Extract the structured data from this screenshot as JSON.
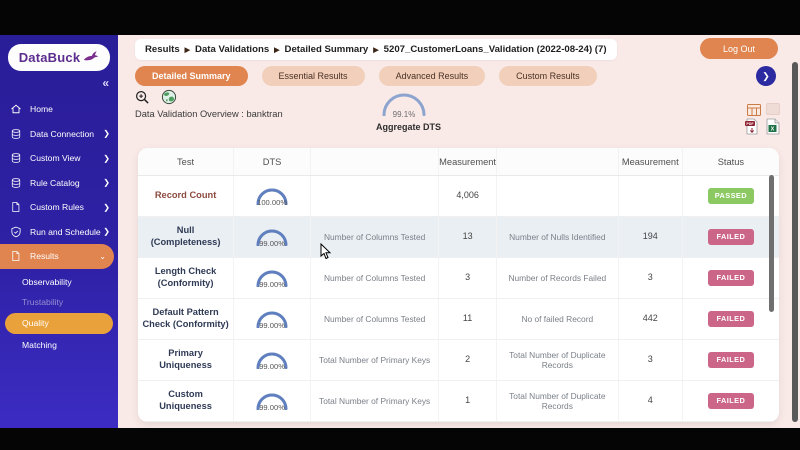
{
  "header": {
    "logout_label": "Log Out"
  },
  "breadcrumb": [
    "Results",
    "Data Validations",
    "Detailed Summary",
    "5207_CustomerLoans_Validation (2022-08-24) (7)"
  ],
  "sidebar": {
    "brand": "DataBuck",
    "collapse_glyph": "«",
    "items": [
      {
        "label": "Home",
        "icon": "home",
        "expandable": false,
        "active": false
      },
      {
        "label": "Data Connection",
        "icon": "database",
        "expandable": true,
        "active": false
      },
      {
        "label": "Custom View",
        "icon": "database",
        "expandable": true,
        "active": false
      },
      {
        "label": "Rule Catalog",
        "icon": "database",
        "expandable": true,
        "active": false
      },
      {
        "label": "Custom Rules",
        "icon": "file",
        "expandable": true,
        "active": false
      },
      {
        "label": "Run and Schedule",
        "icon": "shield",
        "expandable": true,
        "active": false
      },
      {
        "label": "Results",
        "icon": "file",
        "expandable": true,
        "expanded": true,
        "active": true
      }
    ],
    "results_children": [
      {
        "label": "Observability",
        "state": "normal"
      },
      {
        "label": "Trustability",
        "state": "dimmed"
      },
      {
        "label": "Quality",
        "state": "active"
      },
      {
        "label": "Matching",
        "state": "normal"
      }
    ]
  },
  "tabs": [
    {
      "label": "Detailed Summary",
      "active": true
    },
    {
      "label": "Essential Results",
      "active": false
    },
    {
      "label": "Advanced Results",
      "active": false
    },
    {
      "label": "Custom Results",
      "active": false
    }
  ],
  "toolbar": {
    "icons": [
      "zoom-in-magnifier",
      "globe"
    ]
  },
  "overview": {
    "title": "Data Validation Overview : banktran"
  },
  "aggregate": {
    "value_label": "99.1%",
    "pct": 99.1,
    "caption": "Aggregate DTS"
  },
  "exports": {
    "icons": [
      "table-view",
      "chart-view",
      "pdf-export",
      "excel-export"
    ]
  },
  "table": {
    "headers": [
      "Test",
      "DTS",
      "",
      "Measurement",
      "",
      "Measurement",
      "Status"
    ],
    "rows": [
      {
        "test": "Record Count",
        "test_color": "maroon",
        "dts_label": "100.00%",
        "dts_pct": 100,
        "m1_label": "",
        "m1_value": "4,006",
        "m2_label": "",
        "m2_value": "",
        "status": "PASSED",
        "shaded": false
      },
      {
        "test": "Null (Completeness)",
        "test_color": "normal",
        "dts_label": "99.00%",
        "dts_pct": 99,
        "m1_label": "Number of Columns Tested",
        "m1_value": "13",
        "m2_label": "Number of Nulls Identified",
        "m2_value": "194",
        "status": "FAILED",
        "shaded": true
      },
      {
        "test": "Length Check (Conformity)",
        "test_color": "normal",
        "dts_label": "99.00%",
        "dts_pct": 99,
        "m1_label": "Number of Columns Tested",
        "m1_value": "3",
        "m2_label": "Number of Records Failed",
        "m2_value": "3",
        "status": "FAILED",
        "shaded": false
      },
      {
        "test": "Default Pattern Check (Conformity)",
        "test_color": "normal",
        "dts_label": "99.00%",
        "dts_pct": 99,
        "m1_label": "Number of Columns Tested",
        "m1_value": "11",
        "m2_label": "No of failed Record",
        "m2_value": "442",
        "status": "FAILED",
        "shaded": false
      },
      {
        "test": "Primary Uniqueness",
        "test_color": "normal",
        "dts_label": "99.00%",
        "dts_pct": 99,
        "m1_label": "Total Number of Primary Keys",
        "m1_value": "2",
        "m2_label": "Total Number of Duplicate Records",
        "m2_value": "3",
        "status": "FAILED",
        "shaded": false
      },
      {
        "test": "Custom Uniqueness",
        "test_color": "normal",
        "dts_label": "99.00%",
        "dts_pct": 99,
        "m1_label": "Total Number of Primary Keys",
        "m1_value": "1",
        "m2_label": "Total Number of Duplicate Records",
        "m2_value": "4",
        "status": "FAILED",
        "shaded": false
      }
    ]
  },
  "colors": {
    "accent_orange": "#e08450",
    "quality_orange": "#e9a23b",
    "passed_green": "#8cc963",
    "failed_pink": "#cb6688",
    "gauge_blue": "#5f7fbe",
    "sidebar_top": "#2a1d98",
    "sidebar_bottom": "#3c2cc3",
    "bg_pink": "#f9eae8"
  }
}
